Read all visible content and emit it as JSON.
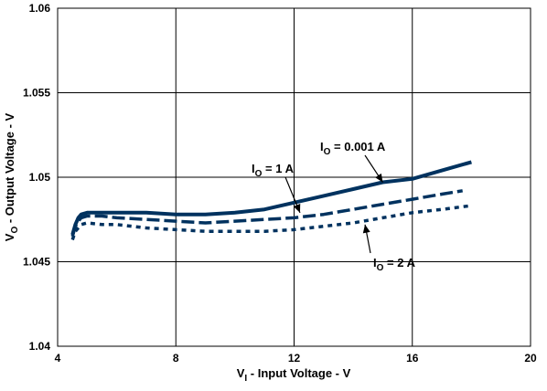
{
  "chart_data": {
    "type": "line",
    "title": "",
    "grid": true,
    "xlabel": {
      "prefix": "V",
      "sub": "I",
      "suffix": " - Input Voltage - V"
    },
    "ylabel": {
      "prefix": "V",
      "sub": "O",
      "suffix": " - Output Voltage - V"
    },
    "xlim": [
      4,
      20
    ],
    "ylim": [
      1.04,
      1.06
    ],
    "xticks": [
      4,
      8,
      12,
      16,
      20
    ],
    "yticks": [
      1.04,
      1.045,
      1.05,
      1.055,
      1.06
    ],
    "xtick_labels": [
      "4",
      "8",
      "12",
      "16",
      "20"
    ],
    "ytick_labels": [
      "1.04",
      "1.045",
      "1.05",
      "1.055",
      "1.06"
    ],
    "line_color": "#00325f",
    "series": [
      {
        "name": "I_O = 0.001 A",
        "style": "solid",
        "x": [
          4.5,
          4.6,
          4.7,
          4.8,
          5.0,
          5.5,
          6.0,
          7.0,
          8.0,
          9.0,
          10.0,
          11.0,
          12.0,
          13.0,
          14.0,
          15.0,
          16.0,
          17.0,
          18.0
        ],
        "y": [
          1.0466,
          1.0472,
          1.0476,
          1.0478,
          1.0479,
          1.0479,
          1.0479,
          1.0479,
          1.0478,
          1.0478,
          1.0479,
          1.0481,
          1.0485,
          1.0489,
          1.0493,
          1.0497,
          1.0499,
          1.0504,
          1.0509
        ]
      },
      {
        "name": "I_O = 1 A",
        "style": "dashed",
        "x": [
          4.5,
          4.6,
          4.7,
          4.8,
          5.0,
          5.5,
          6.0,
          7.0,
          8.0,
          9.0,
          10.0,
          11.0,
          12.0,
          13.0,
          14.0,
          15.0,
          16.0,
          17.0,
          17.7
        ],
        "y": [
          1.0465,
          1.0471,
          1.0474,
          1.0476,
          1.0477,
          1.0477,
          1.0476,
          1.0475,
          1.0474,
          1.0473,
          1.0474,
          1.0475,
          1.0476,
          1.0478,
          1.0481,
          1.0484,
          1.0487,
          1.049,
          1.0492
        ]
      },
      {
        "name": "I_O = 2 A",
        "style": "dotted",
        "x": [
          4.5,
          4.6,
          4.7,
          4.8,
          5.0,
          5.5,
          6.0,
          7.0,
          8.0,
          9.0,
          10.0,
          11.0,
          12.0,
          13.0,
          14.0,
          15.0,
          16.0,
          17.0,
          17.9
        ],
        "y": [
          1.0463,
          1.0468,
          1.047,
          1.0472,
          1.0473,
          1.0472,
          1.0472,
          1.047,
          1.0469,
          1.0468,
          1.0468,
          1.0468,
          1.0469,
          1.0471,
          1.0473,
          1.0476,
          1.0479,
          1.0481,
          1.0483
        ]
      }
    ],
    "annotations": [
      {
        "prefix": "I",
        "sub": "O",
        "suffix": " = 0.001 A",
        "points_to": [
          15.0,
          1.0497
        ]
      },
      {
        "prefix": "I",
        "sub": "O",
        "suffix": " = 1 A",
        "points_to": [
          12.2,
          1.0479
        ]
      },
      {
        "prefix": "I",
        "sub": "O",
        "suffix": " = 2 A",
        "points_to": [
          14.4,
          1.0472
        ]
      }
    ]
  }
}
